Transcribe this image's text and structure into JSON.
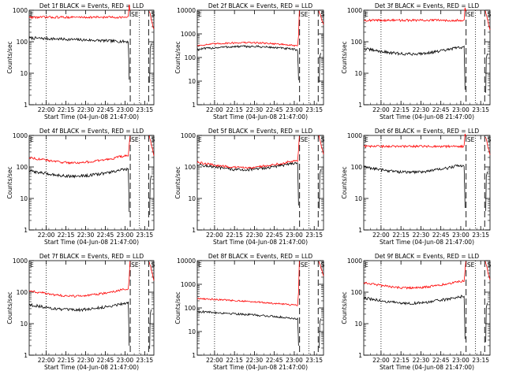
{
  "chart_data": [
    {
      "type": "line",
      "title": "Det 1f BLACK = Events, RED = LLD",
      "xlabel": "Start Time (04-Jun-08 21:47:00)",
      "ylabel": "Counts/sec",
      "xticks": [
        "22:00",
        "22:15",
        "22:30",
        "22:45",
        "23:00",
        "23:15"
      ],
      "yticks": [
        "1",
        "10",
        "100",
        "1000"
      ],
      "yscale": "log",
      "annotations": {
        "left": "E",
        "mid": "SE",
        "right": "S"
      },
      "series": [
        {
          "color": "#000000",
          "level": 125,
          "shape": "flat-decay"
        },
        {
          "color": "#ff0000",
          "level": 600,
          "shape": "flat"
        }
      ]
    },
    {
      "type": "line",
      "title": "Det 2f BLACK = Events, RED = LLD",
      "xlabel": "Start Time (04-Jun-08 21:47:00)",
      "ylabel": "Counts/sec",
      "xticks": [
        "22:00",
        "22:15",
        "22:30",
        "22:45",
        "23:00",
        "23:15"
      ],
      "yticks": [
        "1",
        "10",
        "100",
        "1000",
        "10000"
      ],
      "yscale": "log",
      "annotations": {
        "left": "E",
        "mid": "SE",
        "right": "S"
      },
      "series": [
        {
          "color": "#000000",
          "level": 220,
          "shape": "bump"
        },
        {
          "color": "#ff0000",
          "level": 320,
          "shape": "bump"
        }
      ]
    },
    {
      "type": "line",
      "title": "Det 3f BLACK = Events, RED = LLD",
      "xlabel": "Start Time (04-Jun-08 21:47:00)",
      "ylabel": "Counts/sec",
      "xticks": [
        "22:00",
        "22:15",
        "22:30",
        "22:45",
        "23:00",
        "23:15"
      ],
      "yticks": [
        "1",
        "10",
        "100",
        "1000"
      ],
      "yscale": "log",
      "annotations": {
        "left": "E",
        "mid": "SE",
        "right": "S"
      },
      "series": [
        {
          "color": "#000000",
          "level": 60,
          "shape": "dip"
        },
        {
          "color": "#ff0000",
          "level": 480,
          "shape": "flat"
        }
      ]
    },
    {
      "type": "line",
      "title": "Det 4f BLACK = Events, RED = LLD",
      "xlabel": "Start Time (04-Jun-08 21:47:00)",
      "ylabel": "Counts/sec",
      "xticks": [
        "22:00",
        "22:15",
        "22:30",
        "22:45",
        "23:00",
        "23:15"
      ],
      "yticks": [
        "1",
        "10",
        "100",
        "1000"
      ],
      "yscale": "log",
      "annotations": {
        "left": "E",
        "mid": "SE",
        "right": "S"
      },
      "series": [
        {
          "color": "#000000",
          "level": 75,
          "shape": "dip"
        },
        {
          "color": "#ff0000",
          "level": 200,
          "shape": "dip"
        }
      ]
    },
    {
      "type": "line",
      "title": "Det 5f BLACK = Events, RED = LLD",
      "xlabel": "Start Time (04-Jun-08 21:47:00)",
      "ylabel": "Counts/sec",
      "xticks": [
        "22:00",
        "22:15",
        "22:30",
        "22:45",
        "23:00",
        "23:15"
      ],
      "yticks": [
        "1",
        "10",
        "100",
        "1000"
      ],
      "yscale": "log",
      "annotations": {
        "left": "E",
        "mid": "SE",
        "right": "S"
      },
      "series": [
        {
          "color": "#000000",
          "level": 120,
          "shape": "dip"
        },
        {
          "color": "#ff0000",
          "level": 140,
          "shape": "dip"
        }
      ]
    },
    {
      "type": "line",
      "title": "Det 6f BLACK = Events, RED = LLD",
      "xlabel": "Start Time (04-Jun-08 21:47:00)",
      "ylabel": "Counts/sec",
      "xticks": [
        "22:00",
        "22:15",
        "22:30",
        "22:45",
        "23:00",
        "23:15"
      ],
      "yticks": [
        "1",
        "10",
        "100",
        "1000"
      ],
      "yscale": "log",
      "annotations": {
        "left": "E",
        "mid": "SE",
        "right": "S"
      },
      "series": [
        {
          "color": "#000000",
          "level": 100,
          "shape": "dip"
        },
        {
          "color": "#ff0000",
          "level": 450,
          "shape": "flat"
        }
      ]
    },
    {
      "type": "line",
      "title": "Det 7f BLACK = Events, RED = LLD",
      "xlabel": "Start Time (04-Jun-08 21:47:00)",
      "ylabel": "Counts/sec",
      "xticks": [
        "22:00",
        "22:15",
        "22:30",
        "22:45",
        "23:00",
        "23:15"
      ],
      "yticks": [
        "1",
        "10",
        "100",
        "1000"
      ],
      "yscale": "log",
      "annotations": {
        "left": "E",
        "mid": "SE",
        "right": "S"
      },
      "series": [
        {
          "color": "#000000",
          "level": 40,
          "shape": "dip"
        },
        {
          "color": "#ff0000",
          "level": 110,
          "shape": "dip"
        }
      ]
    },
    {
      "type": "line",
      "title": "Det 8f BLACK = Events, RED = LLD",
      "xlabel": "Start Time (04-Jun-08 21:47:00)",
      "ylabel": "Counts/sec",
      "xticks": [
        "22:00",
        "22:15",
        "22:30",
        "22:45",
        "23:00",
        "23:15"
      ],
      "yticks": [
        "1",
        "10",
        "100",
        "1000",
        "10000"
      ],
      "yscale": "log",
      "annotations": {
        "left": "E",
        "mid": "SE",
        "right": "S"
      },
      "series": [
        {
          "color": "#000000",
          "level": 50,
          "shape": "decline"
        },
        {
          "color": "#ff0000",
          "level": 180,
          "shape": "decline"
        }
      ]
    },
    {
      "type": "line",
      "title": "Det 9f BLACK = Events, RED = LLD",
      "xlabel": "Start Time (04-Jun-08 21:47:00)",
      "ylabel": "Counts/sec",
      "xticks": [
        "22:00",
        "22:15",
        "22:30",
        "22:45",
        "23:00",
        "23:15"
      ],
      "yticks": [
        "1",
        "10",
        "100",
        "1000"
      ],
      "yscale": "log",
      "annotations": {
        "left": "E",
        "mid": "SE",
        "right": "S"
      },
      "series": [
        {
          "color": "#000000",
          "level": 65,
          "shape": "dip"
        },
        {
          "color": "#ff0000",
          "level": 200,
          "shape": "dip"
        }
      ]
    }
  ]
}
